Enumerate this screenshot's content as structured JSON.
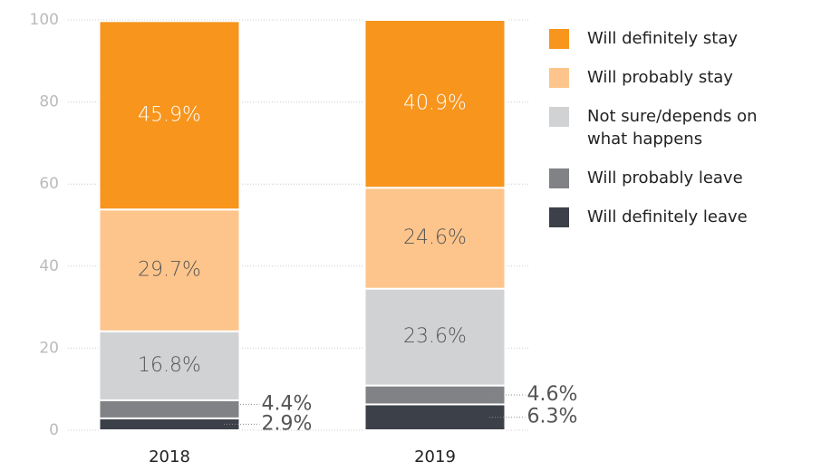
{
  "chart_data": {
    "type": "stacked_bar",
    "categories": [
      "2018",
      "2019"
    ],
    "series": [
      {
        "name": "Will definitely stay",
        "color": "#f7951d",
        "values": [
          45.9,
          40.9
        ],
        "value_labels": [
          "45.9%",
          "40.9%"
        ]
      },
      {
        "name": "Will probably stay",
        "color": "#fdc58b",
        "values": [
          29.7,
          24.6
        ],
        "value_labels": [
          "29.7%",
          "24.6%"
        ]
      },
      {
        "name": "Not sure/depends on what happens",
        "color": "#d1d2d4",
        "values": [
          16.8,
          23.6
        ],
        "value_labels": [
          "16.8%",
          "23.6%"
        ]
      },
      {
        "name": "Will probably leave",
        "color": "#808285",
        "values": [
          4.4,
          4.6
        ],
        "value_labels": [
          "4.4%",
          "4.6%"
        ]
      },
      {
        "name": "Will definitely leave",
        "color": "#3c4049",
        "values": [
          2.9,
          6.3
        ],
        "value_labels": [
          "2.9%",
          "6.3%"
        ]
      }
    ],
    "ylim": [
      0,
      100
    ],
    "yticks": [
      0,
      20,
      40,
      60,
      80,
      100
    ],
    "grid": true,
    "legend": "right"
  }
}
